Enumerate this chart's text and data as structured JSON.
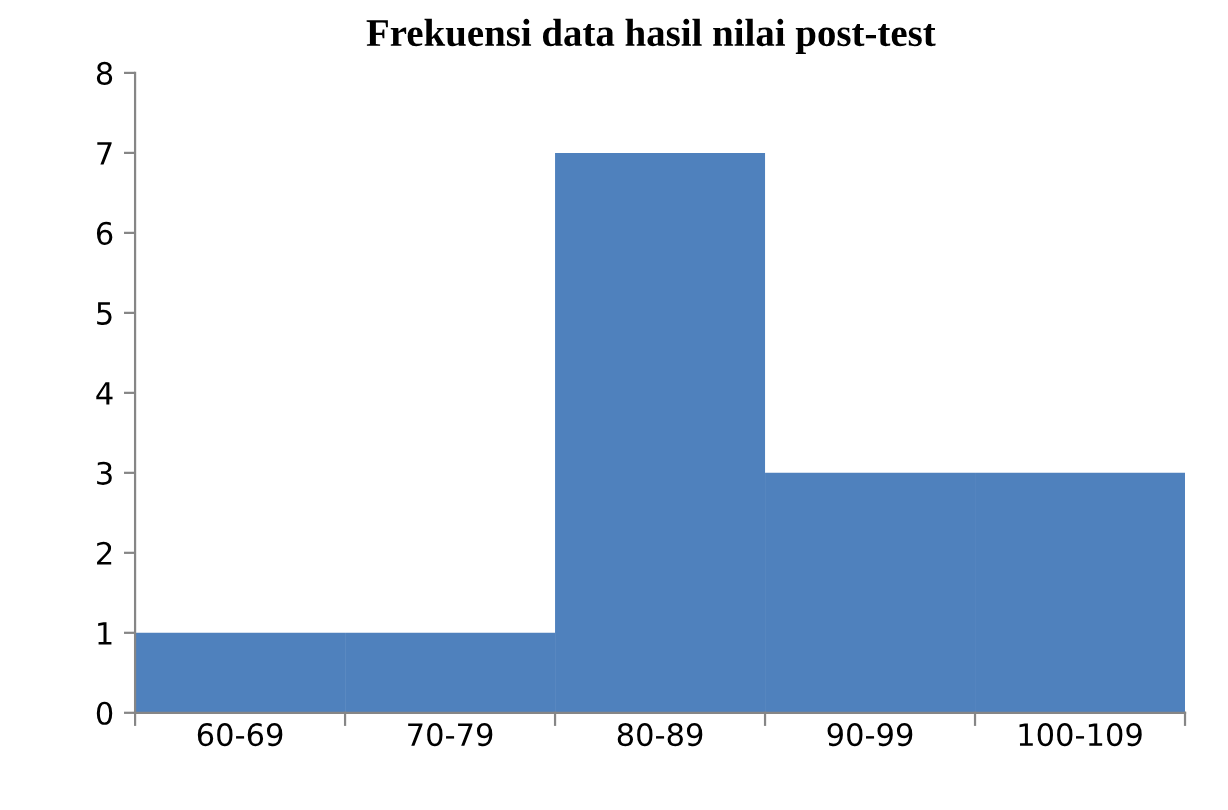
{
  "chart_data": {
    "type": "bar",
    "title": "Frekuensi data hasil nilai post-test",
    "categories": [
      "60-69",
      "70-79",
      "80-89",
      "90-99",
      "100-109"
    ],
    "values": [
      1,
      1,
      7,
      3,
      3
    ],
    "color": "#4f81bd",
    "ylim": [
      0,
      8
    ],
    "yticks": [
      0,
      1,
      2,
      3,
      4,
      5,
      6,
      7,
      8
    ],
    "grid": false
  }
}
